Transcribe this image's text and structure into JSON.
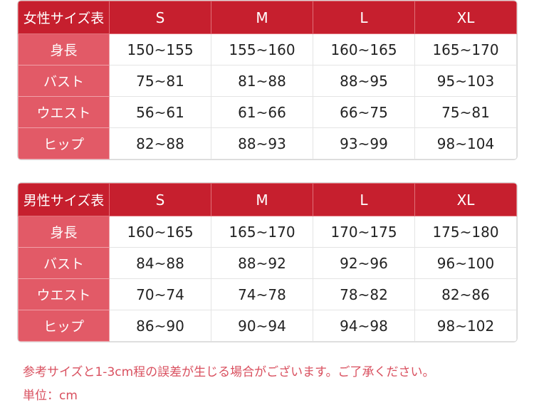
{
  "columns": [
    "S",
    "M",
    "L",
    "XL"
  ],
  "women": {
    "title": "女性サイズ表",
    "rows": [
      {
        "label": "身長",
        "values": [
          "150~155",
          "155~160",
          "160~165",
          "165~170"
        ]
      },
      {
        "label": "バスト",
        "values": [
          "75~81",
          "81~88",
          "88~95",
          "95~103"
        ]
      },
      {
        "label": "ウエスト",
        "values": [
          "56~61",
          "61~66",
          "66~75",
          "75~81"
        ]
      },
      {
        "label": "ヒップ",
        "values": [
          "82~88",
          "88~93",
          "93~99",
          "98~104"
        ]
      }
    ]
  },
  "men": {
    "title": "男性サイズ表",
    "rows": [
      {
        "label": "身長",
        "values": [
          "160~165",
          "165~170",
          "170~175",
          "175~180"
        ]
      },
      {
        "label": "バスト",
        "values": [
          "84~88",
          "88~92",
          "92~96",
          "96~100"
        ]
      },
      {
        "label": "ウエスト",
        "values": [
          "70~74",
          "74~78",
          "78~82",
          "82~86"
        ]
      },
      {
        "label": "ヒップ",
        "values": [
          "86~90",
          "90~94",
          "94~98",
          "98~102"
        ]
      }
    ]
  },
  "notes": {
    "tolerance": "参考サイズと1-3cm程の誤差が生じる場合がございます。ご了承ください。",
    "unit": "単位：cm"
  },
  "colors": {
    "header": "#c61f2e",
    "label": "#e25a67",
    "note": "#d9505f"
  }
}
